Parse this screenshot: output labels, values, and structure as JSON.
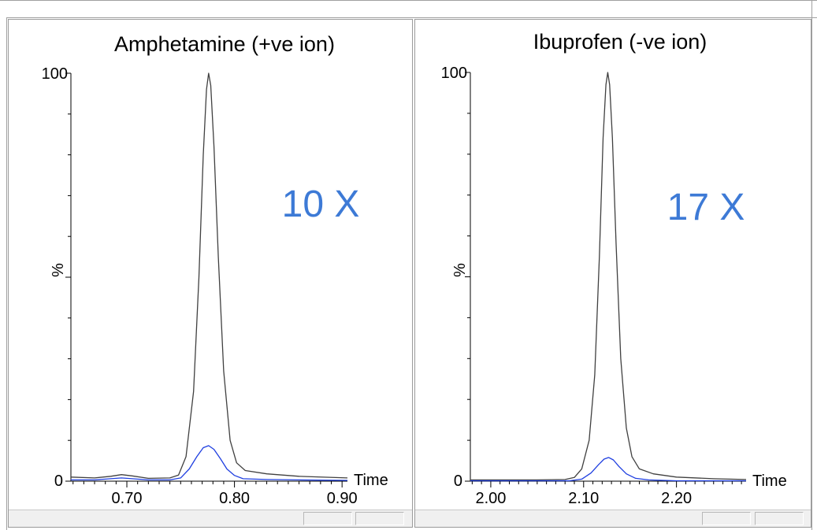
{
  "colors": {
    "tic_trace": "#404040",
    "blue_trace": "#1f3fe0",
    "fold_label": "#3d7ad6",
    "marker_left": "#000000",
    "marker_right": "#0000ff"
  },
  "chart_data": [
    {
      "type": "line",
      "title": "Amphetamine (+ve ion)",
      "xlabel": "Time",
      "ylabel": "%",
      "annotation": "10 X",
      "xlim": [
        0.648,
        0.905
      ],
      "ylim": [
        0,
        100
      ],
      "x_ticks": [
        0.7,
        0.8,
        0.9
      ],
      "x_tick_labels": [
        "0.70",
        "0.80",
        "0.90"
      ],
      "y_tick_labels": [
        "100",
        "0"
      ],
      "series": [
        {
          "color": "#404040",
          "x": [
            0.648,
            0.67,
            0.685,
            0.695,
            0.705,
            0.72,
            0.74,
            0.748,
            0.755,
            0.762,
            0.767,
            0.771,
            0.774,
            0.776,
            0.778,
            0.781,
            0.785,
            0.79,
            0.796,
            0.802,
            0.81,
            0.83,
            0.86,
            0.905
          ],
          "y": [
            1.0,
            0.8,
            1.2,
            1.6,
            1.3,
            0.7,
            0.8,
            1.5,
            6,
            22,
            50,
            80,
            96,
            100,
            97,
            82,
            55,
            27,
            10,
            4.5,
            2.6,
            1.8,
            1.2,
            0.8
          ]
        },
        {
          "color": "#1f3fe0",
          "x": [
            0.648,
            0.67,
            0.685,
            0.695,
            0.705,
            0.72,
            0.74,
            0.75,
            0.758,
            0.765,
            0.771,
            0.776,
            0.781,
            0.787,
            0.793,
            0.8,
            0.808,
            0.83,
            0.86,
            0.905
          ],
          "y": [
            0.3,
            0.3,
            0.6,
            0.8,
            0.6,
            0.3,
            0.3,
            0.8,
            3.0,
            6.0,
            8.2,
            8.7,
            7.8,
            5.5,
            3.0,
            1.4,
            0.6,
            0.4,
            0.3,
            0.2
          ]
        }
      ]
    },
    {
      "type": "line",
      "title": "Ibuprofen (-ve ion)",
      "xlabel": "Time",
      "ylabel": "%",
      "annotation": "17 X",
      "xlim": [
        1.978,
        2.275
      ],
      "ylim": [
        0,
        100
      ],
      "x_ticks": [
        2.0,
        2.1,
        2.2
      ],
      "x_tick_labels": [
        "2.00",
        "2.10",
        "2.20"
      ],
      "y_tick_labels": [
        "100",
        "0"
      ],
      "series": [
        {
          "color": "#404040",
          "x": [
            1.978,
            2.05,
            2.08,
            2.09,
            2.098,
            2.106,
            2.112,
            2.117,
            2.121,
            2.124,
            2.126,
            2.128,
            2.131,
            2.135,
            2.14,
            2.146,
            2.152,
            2.16,
            2.175,
            2.2,
            2.24,
            2.275
          ],
          "y": [
            0.3,
            0.3,
            0.4,
            0.9,
            3.0,
            10,
            26,
            55,
            84,
            97,
            100,
            97,
            84,
            58,
            30,
            13,
            6,
            3,
            1.8,
            1.0,
            0.6,
            0.4
          ]
        },
        {
          "color": "#1f3fe0",
          "x": [
            1.978,
            2.05,
            2.085,
            2.098,
            2.108,
            2.116,
            2.122,
            2.127,
            2.132,
            2.138,
            2.146,
            2.156,
            2.17,
            2.2,
            2.275
          ],
          "y": [
            0.1,
            0.1,
            0.1,
            0.5,
            2.0,
            4.0,
            5.4,
            5.8,
            5.2,
            3.6,
            1.8,
            0.7,
            0.3,
            0.1,
            0.1
          ]
        }
      ]
    }
  ]
}
